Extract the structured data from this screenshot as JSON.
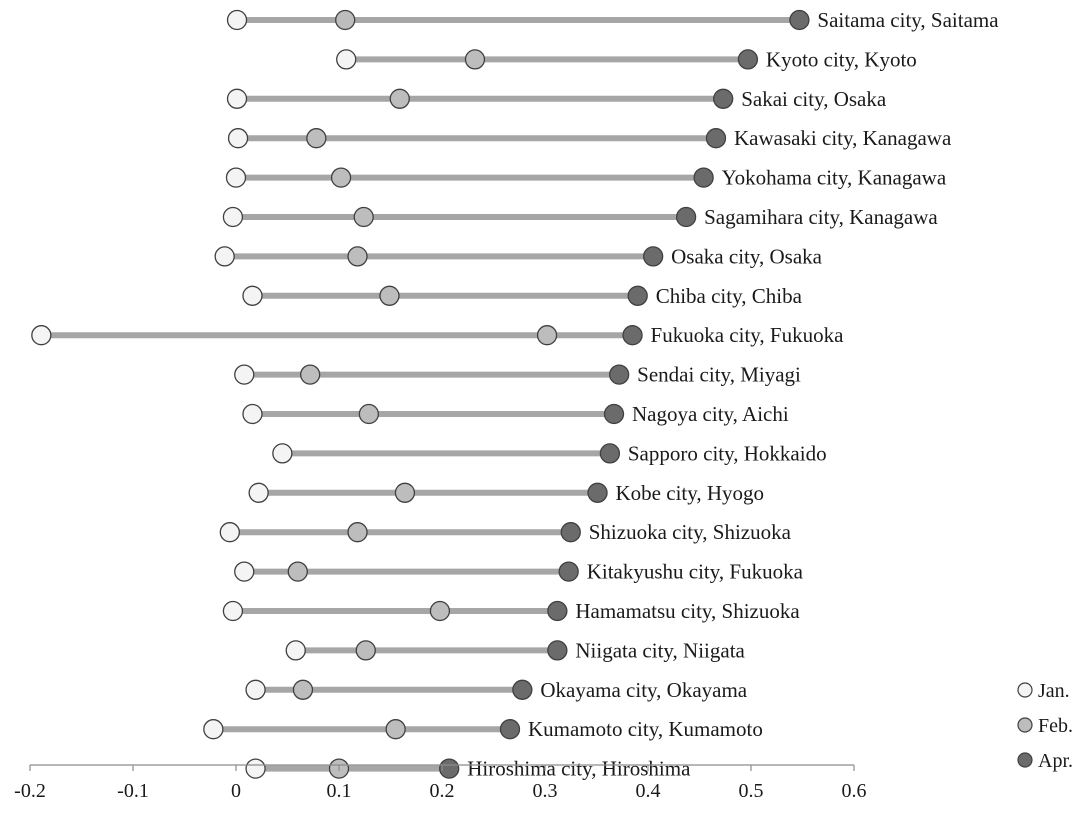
{
  "chart_data": {
    "type": "dot-range",
    "title": "",
    "xlabel": "",
    "ylabel": "",
    "xlim": [
      -0.2,
      0.6
    ],
    "x_ticks": [
      "-0.2",
      "-0.1",
      "0",
      "0.1",
      "0.2",
      "0.3",
      "0.4",
      "0.5",
      "0.6"
    ],
    "grid": false,
    "legend_position": "right-bottom",
    "series": [
      {
        "name": "Jan.",
        "color": "#f4f4f4"
      },
      {
        "name": "Feb.",
        "color": "#bdbdbd"
      },
      {
        "name": "Apr.",
        "color": "#6b6b6b"
      }
    ],
    "connector_color": "#a6a6a6",
    "cities": [
      {
        "label": "Saitama city, Saitama",
        "jan": 0.001,
        "feb": 0.106,
        "apr": 0.547
      },
      {
        "label": "Kyoto city, Kyoto",
        "jan": 0.107,
        "feb": 0.232,
        "apr": 0.497
      },
      {
        "label": "Sakai city, Osaka",
        "jan": 0.001,
        "feb": 0.159,
        "apr": 0.473
      },
      {
        "label": "Kawasaki city, Kanagawa",
        "jan": 0.002,
        "feb": 0.078,
        "apr": 0.466
      },
      {
        "label": "Yokohama city, Kanagawa",
        "jan": 0.0,
        "feb": 0.102,
        "apr": 0.454
      },
      {
        "label": "Sagamihara city, Kanagawa",
        "jan": -0.003,
        "feb": 0.124,
        "apr": 0.437
      },
      {
        "label": "Osaka city, Osaka",
        "jan": -0.011,
        "feb": 0.118,
        "apr": 0.405
      },
      {
        "label": "Chiba city, Chiba",
        "jan": 0.016,
        "feb": 0.149,
        "apr": 0.39
      },
      {
        "label": "Fukuoka city, Fukuoka",
        "jan": -0.189,
        "feb": 0.302,
        "apr": 0.385
      },
      {
        "label": "Sendai city, Miyagi",
        "jan": 0.008,
        "feb": 0.072,
        "apr": 0.372
      },
      {
        "label": "Nagoya city, Aichi",
        "jan": 0.016,
        "feb": 0.129,
        "apr": 0.367
      },
      {
        "label": "Sapporo city, Hokkaido",
        "jan": 0.045,
        "feb": null,
        "apr": 0.363
      },
      {
        "label": "Kobe city, Hyogo",
        "jan": 0.022,
        "feb": 0.164,
        "apr": 0.351
      },
      {
        "label": "Shizuoka city, Shizuoka",
        "jan": -0.006,
        "feb": 0.118,
        "apr": 0.325
      },
      {
        "label": "Kitakyushu city, Fukuoka",
        "jan": 0.008,
        "feb": 0.06,
        "apr": 0.323
      },
      {
        "label": "Hamamatsu city, Shizuoka",
        "jan": -0.003,
        "feb": 0.198,
        "apr": 0.312
      },
      {
        "label": "Niigata city, Niigata",
        "jan": 0.058,
        "feb": 0.126,
        "apr": 0.312
      },
      {
        "label": "Okayama city, Okayama",
        "jan": 0.019,
        "feb": 0.065,
        "apr": 0.278
      },
      {
        "label": "Kumamoto city, Kumamoto",
        "jan": -0.022,
        "feb": 0.155,
        "apr": 0.266
      },
      {
        "label": "Hiroshima city, Hiroshima",
        "jan": 0.019,
        "feb": 0.1,
        "apr": 0.207
      }
    ]
  }
}
